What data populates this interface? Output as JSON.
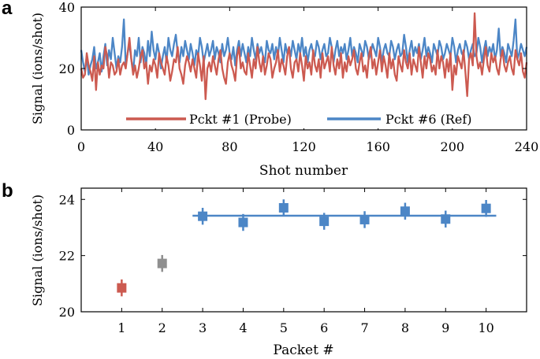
{
  "colors": {
    "probe": "#cc5a50",
    "ref": "#4c86c6",
    "gray": "#8f8f8f",
    "axis": "#000000"
  },
  "panel_labels": {
    "a": "a",
    "b": "b"
  },
  "chart_data": [
    {
      "type": "line",
      "panel": "a",
      "xlabel": "Shot number",
      "ylabel": "Signal (ions/shot)",
      "xlim": [
        0,
        240
      ],
      "ylim": [
        0,
        40
      ],
      "xticks": [
        0,
        40,
        80,
        120,
        160,
        200,
        240
      ],
      "yticks": [
        0,
        20,
        40
      ],
      "grid": false,
      "legend_position": "bottom-right",
      "series": [
        {
          "name": "Pckt #1 (Probe)",
          "color_key": "probe",
          "values": [
            20,
            17,
            18,
            25,
            21,
            19,
            16,
            24,
            13,
            22,
            18,
            21,
            20,
            27,
            24,
            17,
            22,
            21,
            18,
            19,
            23,
            18,
            21,
            22,
            20,
            25,
            30,
            23,
            18,
            21,
            17,
            20,
            24,
            26,
            20,
            22,
            15,
            21,
            19,
            23,
            21,
            17,
            25,
            22,
            20,
            18,
            24,
            21,
            16,
            19,
            23,
            22,
            27,
            20,
            18,
            15,
            21,
            24,
            22,
            19,
            23,
            20,
            17,
            25,
            21,
            16,
            24,
            10,
            20,
            22,
            19,
            24,
            21,
            18,
            23,
            26,
            20,
            17,
            15,
            22,
            25,
            21,
            19,
            16,
            24,
            27,
            20,
            22,
            19,
            18,
            25,
            21,
            17,
            23,
            20,
            27,
            22,
            19,
            24,
            18,
            21,
            25,
            23,
            17,
            20,
            22,
            26,
            19,
            23,
            21,
            18,
            24,
            27,
            20,
            17,
            22,
            23,
            19,
            25,
            21,
            16,
            24,
            20,
            22,
            18,
            26,
            21,
            19,
            23,
            17,
            25,
            20,
            22,
            24,
            19,
            27,
            21,
            18,
            23,
            20,
            25,
            17,
            22,
            19,
            24,
            21,
            23,
            26,
            20,
            18,
            22,
            25,
            19,
            21,
            17,
            24,
            27,
            20,
            23,
            18,
            22,
            26,
            19,
            24,
            21,
            17,
            25,
            20,
            23,
            18,
            16,
            24,
            21,
            19,
            26,
            22,
            20,
            25,
            18,
            23,
            21,
            19,
            27,
            22,
            17,
            24,
            20,
            25,
            23,
            19,
            21,
            18,
            26,
            20,
            24,
            22,
            17,
            23,
            19,
            25,
            13,
            21,
            18,
            24,
            22,
            20,
            26,
            19,
            11,
            23,
            25,
            21,
            38,
            24,
            20,
            22,
            18,
            23,
            27,
            21,
            19,
            25,
            22,
            24,
            20,
            18,
            23,
            26,
            21,
            19,
            22,
            24,
            20,
            18,
            26,
            23,
            21,
            25,
            19,
            17,
            22
          ]
        },
        {
          "name": "Pckt #6 (Ref)",
          "color_key": "ref",
          "values": [
            26,
            22,
            19,
            24,
            18,
            21,
            23,
            27,
            20,
            22,
            25,
            19,
            24,
            28,
            21,
            26,
            23,
            30,
            25,
            20,
            24,
            22,
            27,
            36,
            21,
            25,
            28,
            23,
            19,
            26,
            24,
            30,
            22,
            27,
            25,
            21,
            29,
            24,
            32,
            26,
            23,
            28,
            25,
            20,
            24,
            27,
            22,
            30,
            26,
            24,
            28,
            31,
            25,
            22,
            27,
            24,
            29,
            26,
            23,
            28,
            25,
            21,
            26,
            24,
            30,
            27,
            22,
            25,
            28,
            24,
            26,
            29,
            23,
            27,
            25,
            22,
            28,
            24,
            26,
            30,
            25,
            23,
            27,
            21,
            26,
            29,
            24,
            28,
            25,
            22,
            27,
            24,
            30,
            26,
            23,
            28,
            25,
            27,
            24,
            22,
            29,
            26,
            25,
            28,
            23,
            27,
            24,
            30,
            26,
            22,
            28,
            25,
            27,
            24,
            29,
            26,
            23,
            28,
            25,
            30,
            24,
            27,
            22,
            26,
            28,
            25,
            24,
            29,
            27,
            23,
            26,
            28,
            24,
            25,
            30,
            27,
            22,
            26,
            29,
            24,
            27,
            25,
            28,
            23,
            26,
            30,
            24,
            27,
            25,
            22,
            28,
            26,
            24,
            29,
            27,
            23,
            25,
            28,
            26,
            24,
            30,
            27,
            22,
            26,
            28,
            25,
            24,
            29,
            27,
            23,
            26,
            28,
            24,
            25,
            31,
            27,
            22,
            26,
            29,
            24,
            27,
            25,
            28,
            23,
            26,
            30,
            24,
            27,
            25,
            22,
            28,
            26,
            24,
            29,
            27,
            23,
            25,
            28,
            26,
            24,
            30,
            27,
            22,
            26,
            28,
            25,
            24,
            29,
            27,
            23,
            26,
            28,
            24,
            25,
            30,
            27,
            22,
            26,
            29,
            24,
            27,
            25,
            28,
            23,
            26,
            33,
            24,
            27,
            25,
            22,
            28,
            26,
            24,
            29,
            36,
            23,
            25,
            28,
            26,
            24,
            27
          ]
        }
      ]
    },
    {
      "type": "scatter",
      "panel": "b",
      "xlabel": "Packet #",
      "ylabel": "Signal (ions/shot)",
      "xlim": [
        0,
        11
      ],
      "ylim": [
        20,
        24.4
      ],
      "xticks": [
        1,
        2,
        3,
        4,
        5,
        6,
        7,
        8,
        9,
        10
      ],
      "yticks": [
        20,
        22,
        24
      ],
      "grid": false,
      "points": [
        {
          "x": 1,
          "y": 20.85,
          "err": 0.3,
          "color_key": "probe"
        },
        {
          "x": 2,
          "y": 21.72,
          "err": 0.3,
          "color_key": "gray"
        },
        {
          "x": 3,
          "y": 23.4,
          "err": 0.3,
          "color_key": "ref"
        },
        {
          "x": 4,
          "y": 23.18,
          "err": 0.3,
          "color_key": "ref"
        },
        {
          "x": 5,
          "y": 23.7,
          "err": 0.3,
          "color_key": "ref"
        },
        {
          "x": 6,
          "y": 23.22,
          "err": 0.3,
          "color_key": "ref"
        },
        {
          "x": 7,
          "y": 23.28,
          "err": 0.3,
          "color_key": "ref"
        },
        {
          "x": 8,
          "y": 23.58,
          "err": 0.3,
          "color_key": "ref"
        },
        {
          "x": 9,
          "y": 23.3,
          "err": 0.3,
          "color_key": "ref"
        },
        {
          "x": 10,
          "y": 23.68,
          "err": 0.3,
          "color_key": "ref"
        }
      ],
      "reference_line": {
        "x_start": 2.75,
        "x_end": 10.25,
        "y": 23.42,
        "color_key": "ref"
      }
    }
  ]
}
